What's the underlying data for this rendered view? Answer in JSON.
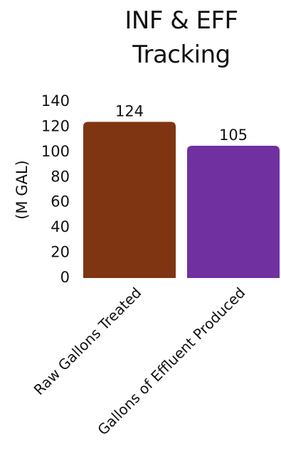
{
  "chart_data": {
    "type": "bar",
    "title_lines": [
      "INF & EFF",
      "Tracking"
    ],
    "ylabel": "(M GAL)",
    "xlabel": "",
    "categories": [
      "Raw Gallons Treated",
      "Gallons of Effluent Produced"
    ],
    "values": [
      124,
      105
    ],
    "data_labels": [
      "124",
      "105"
    ],
    "bar_colors": [
      "#7F3512",
      "#7030A0"
    ],
    "ylim": [
      0,
      140
    ],
    "yticks": [
      0,
      20,
      40,
      60,
      80,
      100,
      120,
      140
    ],
    "grid": false,
    "legend": "none"
  }
}
